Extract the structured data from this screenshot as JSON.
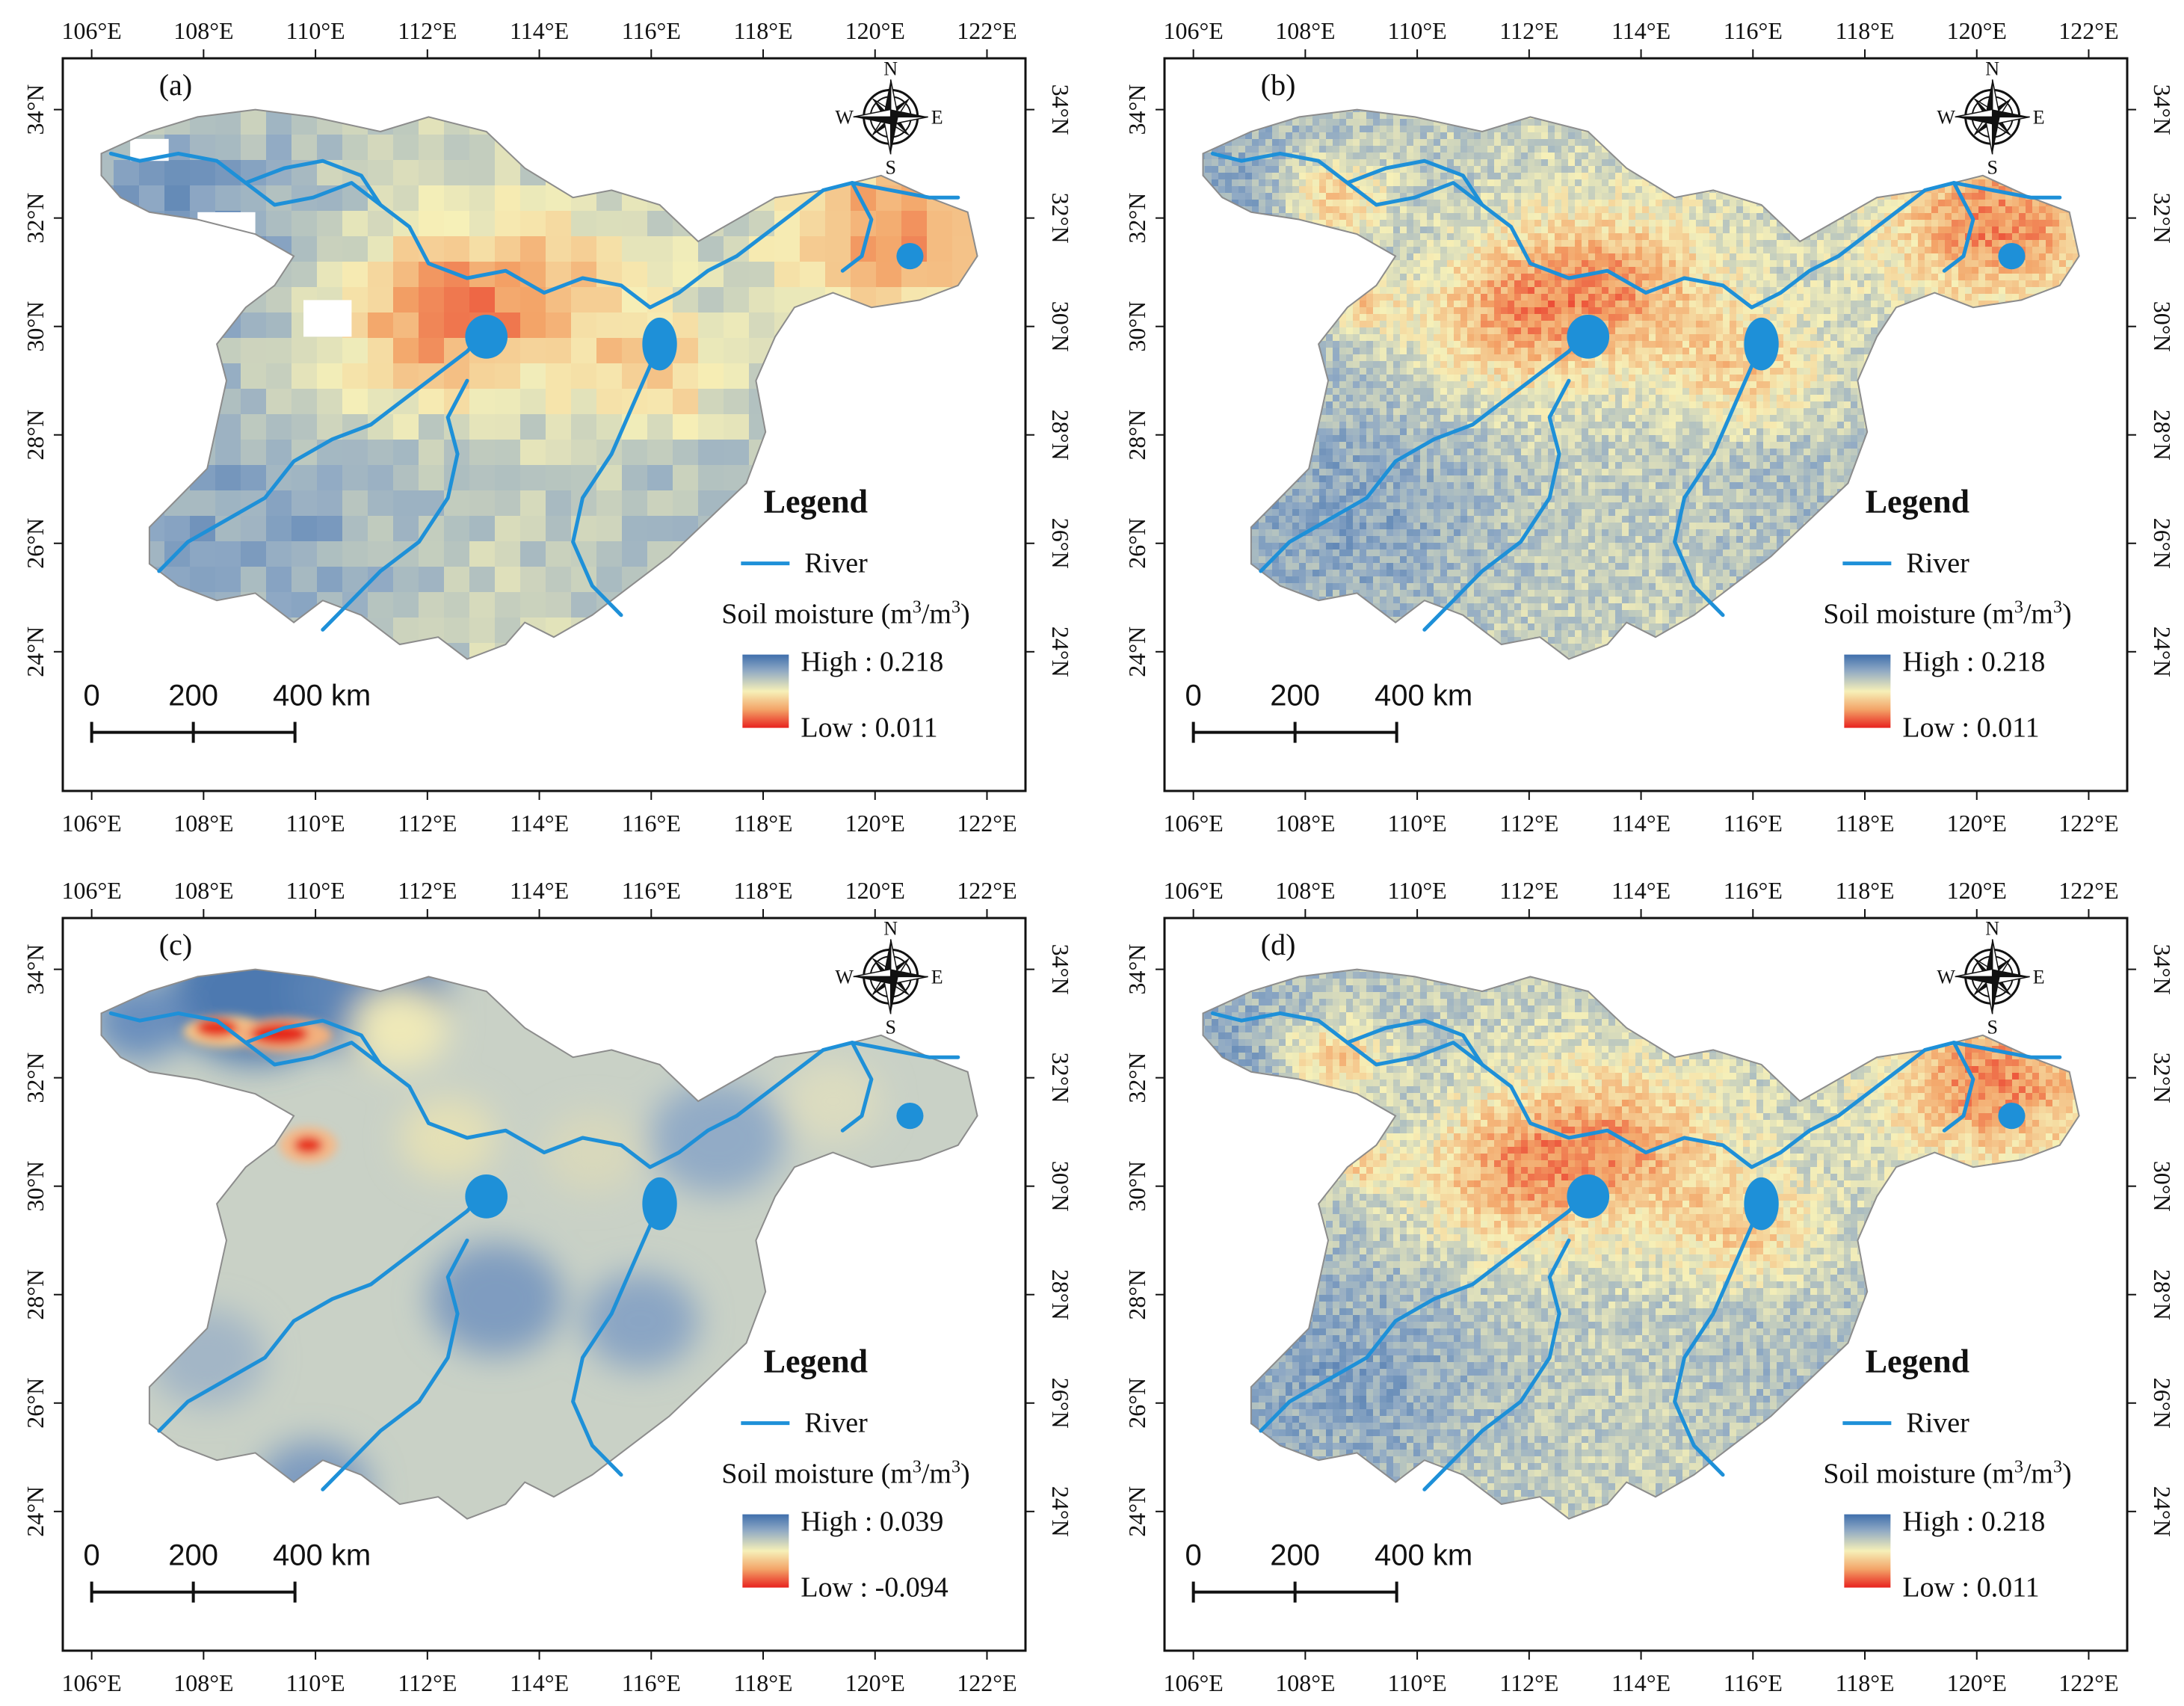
{
  "panels": [
    {
      "label": "(a)",
      "style": "coarse-grid",
      "legend": {
        "title": "Legend",
        "river_label": "River",
        "variable": "Soil moisture (m",
        "unit_sup1": "3",
        "unit_mid": "/m",
        "unit_sup2": "3",
        "unit_close": ")",
        "high": "High : 0.218",
        "low": "Low : 0.011"
      },
      "scalebar": {
        "ticks": [
          "0",
          "200",
          "400 km"
        ]
      },
      "axes": {
        "top": [
          "106°E",
          "108°E",
          "110°E",
          "112°E",
          "114°E",
          "116°E",
          "118°E",
          "120°E",
          "122°E"
        ],
        "bottom": [
          "106°E",
          "108°E",
          "110°E",
          "112°E",
          "114°E",
          "116°E",
          "118°E",
          "120°E",
          "122°E"
        ],
        "left": [
          "34°N",
          "32°N",
          "30°N",
          "28°N",
          "26°N",
          "24°N"
        ],
        "right": [
          "34°N",
          "32°N",
          "30°N",
          "28°N",
          "26°N",
          "24°N"
        ]
      }
    },
    {
      "label": "(b)",
      "style": "fine-raster",
      "legend": {
        "title": "Legend",
        "river_label": "River",
        "variable": "Soil moisture (m",
        "unit_sup1": "3",
        "unit_mid": "/m",
        "unit_sup2": "3",
        "unit_close": ")",
        "high": "High : 0.218",
        "low": "Low : 0.011"
      },
      "scalebar": {
        "ticks": [
          "0",
          "200",
          "400 km"
        ]
      },
      "axes": {
        "top": [
          "106°E",
          "108°E",
          "110°E",
          "112°E",
          "114°E",
          "116°E",
          "118°E",
          "120°E",
          "122°E"
        ],
        "bottom": [
          "106°E",
          "108°E",
          "110°E",
          "112°E",
          "114°E",
          "116°E",
          "118°E",
          "120°E",
          "122°E"
        ],
        "left": [
          "34°N",
          "32°N",
          "30°N",
          "28°N",
          "26°N",
          "24°N"
        ],
        "right": [
          "34°N",
          "32°N",
          "30°N",
          "28°N",
          "26°N",
          "24°N"
        ]
      }
    },
    {
      "label": "(c)",
      "style": "smooth-difference",
      "legend": {
        "title": "Legend",
        "river_label": "River",
        "variable": "Soil moisture (m",
        "unit_sup1": "3",
        "unit_mid": "/m",
        "unit_sup2": "3",
        "unit_close": ")",
        "high": "High : 0.039",
        "low": "Low : -0.094"
      },
      "scalebar": {
        "ticks": [
          "0",
          "200",
          "400 km"
        ]
      },
      "axes": {
        "top": [
          "106°E",
          "108°E",
          "110°E",
          "112°E",
          "114°E",
          "116°E",
          "118°E",
          "120°E",
          "122°E"
        ],
        "bottom": [
          "106°E",
          "108°E",
          "110°E",
          "112°E",
          "114°E",
          "116°E",
          "118°E",
          "120°E",
          "122°E"
        ],
        "left": [
          "34°N",
          "32°N",
          "30°N",
          "28°N",
          "26°N",
          "24°N"
        ],
        "right": [
          "34°N",
          "32°N",
          "30°N",
          "28°N",
          "26°N",
          "24°N"
        ]
      }
    },
    {
      "label": "(d)",
      "style": "fine-raster",
      "legend": {
        "title": "Legend",
        "river_label": "River",
        "variable": "Soil moisture (m",
        "unit_sup1": "3",
        "unit_mid": "/m",
        "unit_sup2": "3",
        "unit_close": ")",
        "high": "High : 0.218",
        "low": "Low : 0.011"
      },
      "scalebar": {
        "ticks": [
          "0",
          "200",
          "400 km"
        ]
      },
      "axes": {
        "top": [
          "106°E",
          "108°E",
          "110°E",
          "112°E",
          "114°E",
          "116°E",
          "118°E",
          "120°E",
          "122°E"
        ],
        "bottom": [
          "106°E",
          "108°E",
          "110°E",
          "112°E",
          "114°E",
          "116°E",
          "118°E",
          "120°E",
          "122°E"
        ],
        "left": [
          "34°N",
          "32°N",
          "30°N",
          "28°N",
          "26°N",
          "24°N"
        ],
        "right": [
          "34°N",
          "32°N",
          "30°N",
          "28°N",
          "26°N",
          "24°N"
        ]
      }
    }
  ],
  "compass": {
    "n": "N",
    "s": "S",
    "e": "E",
    "w": "W"
  },
  "colors": {
    "river": "#1e90d8",
    "ramp_high": "#4a76b0",
    "ramp_mid": "#f5eeb4",
    "ramp_low": "#e8221e",
    "frame": "#111111"
  }
}
